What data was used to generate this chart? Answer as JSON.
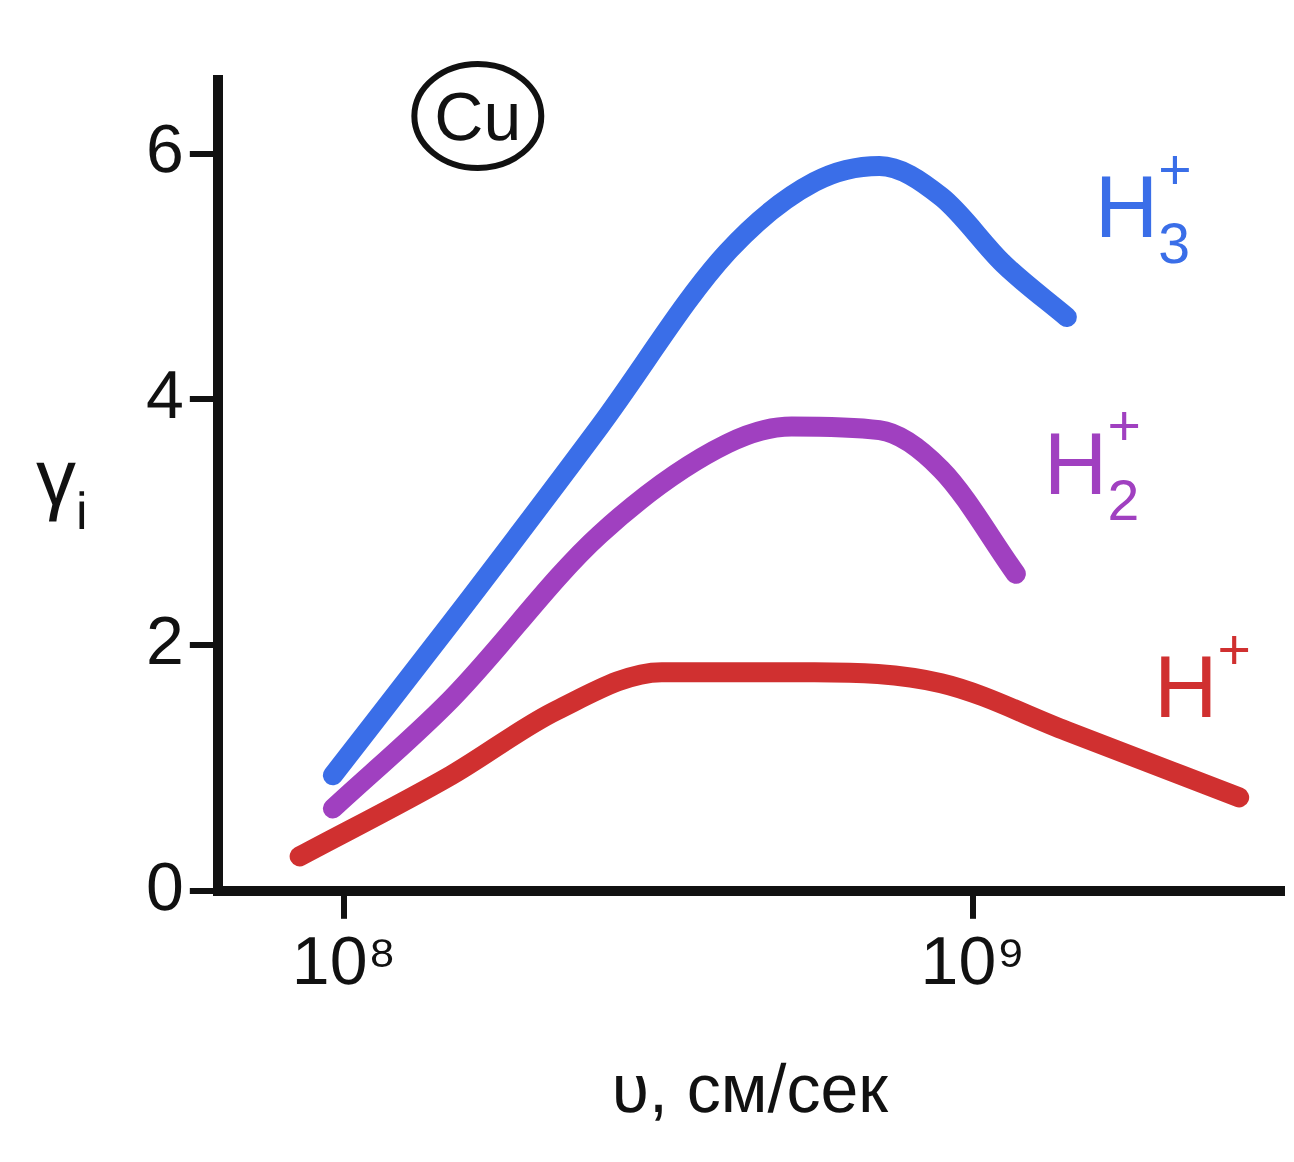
{
  "chart_data": {
    "type": "line",
    "xlabel": "υ, см/сек",
    "ylabel": "γ$_{i}$",
    "annotations": [
      "Cu"
    ],
    "log": "x",
    "grid": false,
    "legend": false,
    "marker": "none",
    "line_style": "solid",
    "xlim": [
      63000000,
      3100000000
    ],
    "xticks": [
      {
        "value": 100000000,
        "label": "10⁸"
      },
      {
        "value": 1000000000,
        "label": "10⁹"
      }
    ],
    "ylim": [
      0,
      6.6
    ],
    "yticks": [
      0,
      2,
      4,
      6
    ],
    "series": [
      {
        "name": "H$_{3}$$^{+}$",
        "color": "#3a6ee8",
        "x": [
          96000000,
          148000000,
          255000000,
          407000000,
          560000000,
          710000000,
          890000000,
          1120000000,
          1410000000
        ],
        "values": [
          0.94,
          2.18,
          3.78,
          5.2,
          5.77,
          5.9,
          5.65,
          5.1,
          4.67
        ]
      },
      {
        "name": "H$_{2}$$^{+}$",
        "color": "#a040c0",
        "x": [
          96000000,
          148000000,
          255000000,
          407000000,
          515000000,
          710000000,
          890000000,
          1170000000
        ],
        "values": [
          0.67,
          1.56,
          2.9,
          3.64,
          3.78,
          3.75,
          3.43,
          2.58
        ]
      },
      {
        "name": "H$^{+}$",
        "color": "#d03030",
        "x": [
          85000000,
          148000000,
          218000000,
          320000000,
          560000000,
          890000000,
          1410000000,
          2650000000
        ],
        "values": [
          0.28,
          0.94,
          1.47,
          1.78,
          1.78,
          1.69,
          1.3,
          0.76
        ]
      }
    ]
  }
}
